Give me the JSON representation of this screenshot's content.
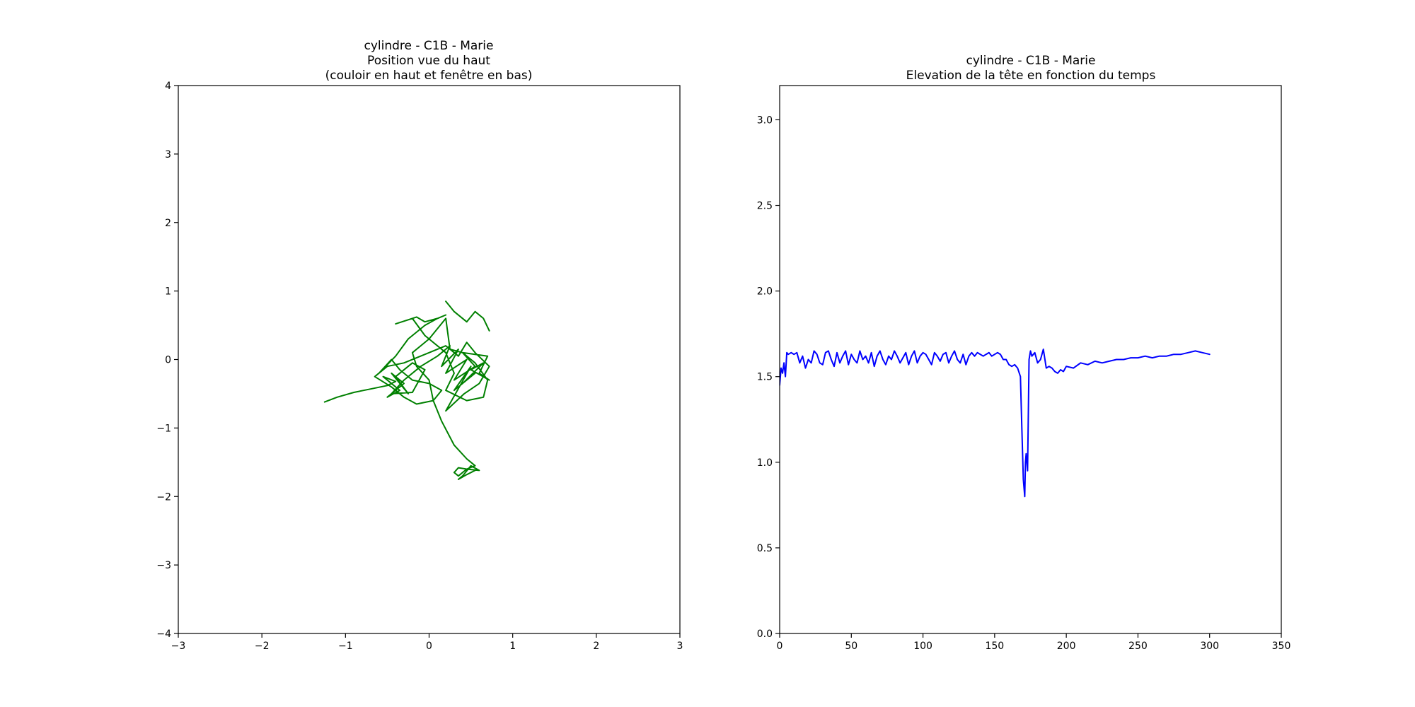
{
  "chart_data": [
    {
      "type": "line",
      "title_lines": [
        "cylindre - C1B - Marie",
        "Position vue du haut",
        "(couloir en haut et fenêtre en bas)"
      ],
      "xlabel": "",
      "ylabel": "",
      "xlim": [
        -3,
        3
      ],
      "ylim": [
        -4,
        4
      ],
      "x_ticks": [
        -3,
        -2,
        -1,
        0,
        1,
        2,
        3
      ],
      "y_ticks": [
        -4,
        -3,
        -2,
        -1,
        0,
        1,
        2,
        3,
        4
      ],
      "x_tick_labels": [
        "−3",
        "−2",
        "−1",
        "0",
        "1",
        "2",
        "3"
      ],
      "y_tick_labels": [
        "−4",
        "−3",
        "−2",
        "−1",
        "0",
        "1",
        "2",
        "3",
        "4"
      ],
      "grid": false,
      "color": "#008000",
      "series": [
        {
          "x": [
            -1.25,
            -1.1,
            -0.9,
            -0.7,
            -0.5,
            -0.4,
            -0.55,
            -0.35,
            -0.5,
            -0.3,
            -0.45,
            -0.25,
            -0.4,
            -0.2,
            -0.05,
            -0.2,
            -0.45,
            -0.3,
            -0.1,
            0.1,
            0.25,
            0.15,
            0.35,
            0.2,
            0.45,
            0.3,
            0.55,
            0.4,
            0.7,
            0.6,
            0.72,
            0.5,
            0.65,
            0.4,
            0.55,
            0.3,
            0.5,
            0.2,
            0.42,
            0.6,
            0.72,
            0.55,
            0.45,
            0.35,
            0.2,
            0.0,
            -0.3,
            -0.5,
            -0.65,
            -0.45,
            -0.3,
            -0.15,
            0.05,
            0.15,
            0.0,
            -0.2,
            -0.35,
            -0.45,
            -0.6,
            -0.4,
            -0.25,
            -0.05,
            0.1,
            0.2,
            0.1,
            -0.05,
            -0.15,
            -0.25,
            -0.4,
            -0.2,
            -0.05,
            0.2,
            0.3,
            0.2,
            0.45,
            0.65,
            0.7,
            0.55,
            0.4,
            0.25,
            0.2,
            0.1,
            0.0,
            -0.1,
            -0.2,
            -0.15,
            0.0,
            0.05,
            0.15,
            0.3,
            0.45,
            0.55,
            0.45,
            0.35,
            0.3,
            0.35,
            0.45,
            0.6,
            0.5,
            0.4,
            0.35,
            0.45,
            0.55
          ],
          "y": [
            -0.62,
            -0.55,
            -0.48,
            -0.43,
            -0.38,
            -0.32,
            -0.25,
            -0.45,
            -0.55,
            -0.35,
            -0.2,
            -0.5,
            -0.25,
            -0.05,
            -0.15,
            -0.48,
            -0.5,
            -0.3,
            -0.1,
            0.05,
            0.2,
            -0.1,
            0.15,
            -0.2,
            0.0,
            -0.3,
            -0.1,
            0.1,
            0.05,
            -0.2,
            -0.3,
            -0.15,
            -0.05,
            -0.35,
            -0.2,
            -0.45,
            -0.1,
            -0.75,
            -0.5,
            -0.35,
            -0.1,
            0.1,
            0.25,
            0.05,
            0.2,
            0.1,
            -0.05,
            -0.1,
            -0.25,
            -0.4,
            -0.55,
            -0.65,
            -0.6,
            -0.45,
            -0.35,
            -0.3,
            -0.15,
            0.0,
            -0.2,
            0.05,
            0.3,
            0.5,
            0.6,
            0.65,
            0.6,
            0.55,
            0.62,
            0.58,
            0.52,
            0.6,
            0.35,
            0.1,
            -0.2,
            -0.45,
            -0.6,
            -0.55,
            -0.3,
            -0.05,
            0.1,
            0.15,
            0.6,
            0.45,
            0.3,
            0.2,
            0.1,
            -0.1,
            -0.3,
            -0.6,
            -0.9,
            -1.25,
            -1.45,
            -1.55,
            -1.6,
            -1.7,
            -1.65,
            -1.58,
            -1.6,
            -1.62,
            -1.55,
            -1.7,
            -1.75,
            -1.68,
            -1.62
          ]
        },
        {
          "x": [
            0.2,
            0.3,
            0.45,
            0.55,
            0.65,
            0.72
          ],
          "y": [
            0.85,
            0.7,
            0.55,
            0.7,
            0.6,
            0.42
          ]
        }
      ]
    },
    {
      "type": "line",
      "title_lines": [
        "cylindre - C1B - Marie",
        "Elevation de la tête en fonction du temps"
      ],
      "xlabel": "",
      "ylabel": "",
      "xlim": [
        0,
        350
      ],
      "ylim": [
        0,
        3.2
      ],
      "x_ticks": [
        0,
        50,
        100,
        150,
        200,
        250,
        300,
        350
      ],
      "y_ticks": [
        0.0,
        0.5,
        1.0,
        1.5,
        2.0,
        2.5,
        3.0
      ],
      "x_tick_labels": [
        "0",
        "50",
        "100",
        "150",
        "200",
        "250",
        "300",
        "350"
      ],
      "y_tick_labels": [
        "0.0",
        "0.5",
        "1.0",
        "1.5",
        "2.0",
        "2.5",
        "3.0"
      ],
      "grid": false,
      "color": "#0000ff",
      "series": [
        {
          "x": [
            0,
            1,
            2,
            3,
            4,
            5,
            6,
            8,
            10,
            12,
            14,
            16,
            18,
            20,
            22,
            24,
            26,
            28,
            30,
            32,
            34,
            36,
            38,
            40,
            42,
            44,
            46,
            48,
            50,
            52,
            54,
            56,
            58,
            60,
            62,
            64,
            66,
            68,
            70,
            72,
            74,
            76,
            78,
            80,
            82,
            84,
            86,
            88,
            90,
            92,
            94,
            96,
            98,
            100,
            102,
            104,
            106,
            108,
            110,
            112,
            114,
            116,
            118,
            120,
            122,
            124,
            126,
            128,
            130,
            132,
            134,
            136,
            138,
            140,
            142,
            144,
            146,
            148,
            150,
            152,
            154,
            156,
            158,
            160,
            162,
            164,
            166,
            168,
            169,
            170,
            171,
            171.5,
            172,
            173,
            174,
            175,
            176,
            178,
            180,
            182,
            184,
            186,
            188,
            190,
            192,
            194,
            196,
            198,
            200,
            205,
            210,
            215,
            220,
            225,
            230,
            235,
            240,
            245,
            250,
            255,
            260,
            265,
            270,
            275,
            280,
            285,
            290,
            295,
            300
          ],
          "y": [
            1.45,
            1.55,
            1.52,
            1.58,
            1.5,
            1.64,
            1.63,
            1.64,
            1.63,
            1.64,
            1.58,
            1.62,
            1.55,
            1.6,
            1.58,
            1.65,
            1.63,
            1.58,
            1.57,
            1.64,
            1.65,
            1.6,
            1.56,
            1.64,
            1.58,
            1.62,
            1.65,
            1.57,
            1.63,
            1.6,
            1.58,
            1.65,
            1.6,
            1.62,
            1.58,
            1.64,
            1.56,
            1.62,
            1.65,
            1.6,
            1.57,
            1.62,
            1.6,
            1.65,
            1.62,
            1.58,
            1.61,
            1.64,
            1.57,
            1.62,
            1.65,
            1.58,
            1.62,
            1.64,
            1.63,
            1.6,
            1.57,
            1.64,
            1.62,
            1.59,
            1.63,
            1.64,
            1.58,
            1.62,
            1.65,
            1.6,
            1.58,
            1.63,
            1.57,
            1.62,
            1.64,
            1.62,
            1.64,
            1.63,
            1.62,
            1.63,
            1.64,
            1.62,
            1.63,
            1.64,
            1.63,
            1.6,
            1.6,
            1.57,
            1.56,
            1.57,
            1.55,
            1.5,
            1.2,
            0.9,
            0.8,
            1.0,
            1.05,
            0.95,
            1.6,
            1.65,
            1.62,
            1.64,
            1.58,
            1.6,
            1.66,
            1.55,
            1.56,
            1.55,
            1.53,
            1.52,
            1.54,
            1.53,
            1.56,
            1.55,
            1.58,
            1.57,
            1.59,
            1.58,
            1.59,
            1.6,
            1.6,
            1.61,
            1.61,
            1.62,
            1.61,
            1.62,
            1.62,
            1.63,
            1.63,
            1.64,
            1.65,
            1.64,
            1.63
          ]
        }
      ]
    }
  ]
}
